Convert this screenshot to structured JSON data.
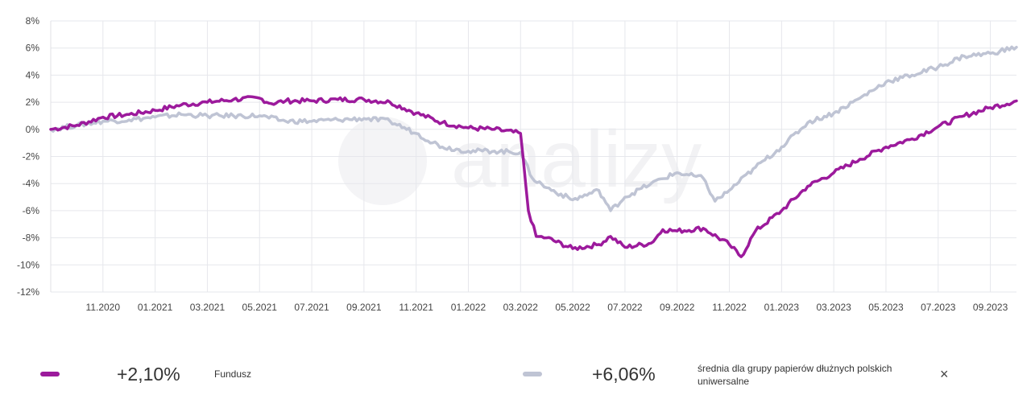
{
  "chart_data": {
    "type": "line",
    "ylim": [
      -12,
      8
    ],
    "y_ticks": [
      8,
      6,
      4,
      2,
      0,
      -2,
      -4,
      -6,
      -8,
      -10,
      -12
    ],
    "y_tick_labels": [
      "8%",
      "6%",
      "4%",
      "2%",
      "0%",
      "-2%",
      "-4%",
      "-6%",
      "-8%",
      "-10%",
      "-12%"
    ],
    "x_ticks": [
      "11.2020",
      "01.2021",
      "03.2021",
      "05.2021",
      "07.2021",
      "09.2021",
      "11.2021",
      "01.2022",
      "03.2022",
      "05.2022",
      "07.2022",
      "09.2022",
      "11.2022",
      "01.2023",
      "03.2023",
      "05.2023",
      "07.2023",
      "09.2023"
    ],
    "x_range": [
      "09.2020",
      "10.2023"
    ],
    "grid": true,
    "watermark": "analizy",
    "series": [
      {
        "name": "Fundusz",
        "color": "#9c1a9c",
        "points": [
          [
            "09.2020",
            0.0
          ],
          [
            "10.2020",
            0.3
          ],
          [
            "11.2020",
            0.9
          ],
          [
            "12.2020",
            1.1
          ],
          [
            "01.2021",
            1.4
          ],
          [
            "02.2021",
            1.8
          ],
          [
            "03.2021",
            2.0
          ],
          [
            "04.2021",
            2.2
          ],
          [
            "05.2021",
            2.3
          ],
          [
            "05.2021",
            1.9
          ],
          [
            "06.2021",
            2.1
          ],
          [
            "07.2021",
            2.1
          ],
          [
            "08.2021",
            2.2
          ],
          [
            "09.2021",
            2.2
          ],
          [
            "10.2021",
            2.0
          ],
          [
            "11.2021",
            1.2
          ],
          [
            "12.2021",
            0.5
          ],
          [
            "01.2022",
            0.1
          ],
          [
            "02.2022",
            0.0
          ],
          [
            "03.2022",
            -0.3
          ],
          [
            "03.2022",
            -6.0
          ],
          [
            "03.2022",
            -7.9
          ],
          [
            "04.2022",
            -8.0
          ],
          [
            "05.2022",
            -8.8
          ],
          [
            "06.2022",
            -8.5
          ],
          [
            "06.2022",
            -7.9
          ],
          [
            "07.2022",
            -8.7
          ],
          [
            "08.2022",
            -8.4
          ],
          [
            "08.2022",
            -7.4
          ],
          [
            "09.2022",
            -7.5
          ],
          [
            "10.2022",
            -7.3
          ],
          [
            "11.2022",
            -8.5
          ],
          [
            "11.2022",
            -9.4
          ],
          [
            "12.2022",
            -7.5
          ],
          [
            "01.2023",
            -6.0
          ],
          [
            "02.2023",
            -4.2
          ],
          [
            "03.2023",
            -3.2
          ],
          [
            "04.2023",
            -2.2
          ],
          [
            "05.2023",
            -1.3
          ],
          [
            "06.2023",
            -0.7
          ],
          [
            "07.2023",
            0.2
          ],
          [
            "08.2023",
            1.0
          ],
          [
            "09.2023",
            1.6
          ],
          [
            "10.2023",
            2.1
          ]
        ]
      },
      {
        "name": "średnia dla grupy papierów dłużnych polskich uniwersalne",
        "color": "#bfc4d4",
        "points": [
          [
            "09.2020",
            0.0
          ],
          [
            "10.2020",
            0.3
          ],
          [
            "11.2020",
            0.6
          ],
          [
            "12.2020",
            0.7
          ],
          [
            "01.2021",
            0.9
          ],
          [
            "02.2021",
            1.1
          ],
          [
            "03.2021",
            1.0
          ],
          [
            "04.2021",
            1.0
          ],
          [
            "05.2021",
            1.0
          ],
          [
            "06.2021",
            0.6
          ],
          [
            "07.2021",
            0.6
          ],
          [
            "08.2021",
            0.7
          ],
          [
            "09.2021",
            0.8
          ],
          [
            "10.2021",
            0.6
          ],
          [
            "11.2021",
            -0.3
          ],
          [
            "12.2021",
            -1.3
          ],
          [
            "01.2022",
            -1.6
          ],
          [
            "02.2022",
            -1.6
          ],
          [
            "03.2022",
            -1.7
          ],
          [
            "03.2022",
            -3.6
          ],
          [
            "04.2022",
            -4.3
          ],
          [
            "05.2022",
            -5.2
          ],
          [
            "06.2022",
            -4.5
          ],
          [
            "06.2022",
            -6.0
          ],
          [
            "07.2022",
            -5.0
          ],
          [
            "08.2022",
            -4.0
          ],
          [
            "09.2022",
            -3.2
          ],
          [
            "10.2022",
            -3.6
          ],
          [
            "10.2022",
            -5.3
          ],
          [
            "11.2022",
            -4.5
          ],
          [
            "12.2022",
            -2.8
          ],
          [
            "01.2023",
            -1.3
          ],
          [
            "02.2023",
            0.5
          ],
          [
            "03.2023",
            1.2
          ],
          [
            "04.2023",
            2.3
          ],
          [
            "05.2023",
            3.5
          ],
          [
            "06.2023",
            4.0
          ],
          [
            "07.2023",
            4.6
          ],
          [
            "08.2023",
            5.4
          ],
          [
            "09.2023",
            5.6
          ],
          [
            "10.2023",
            6.06
          ]
        ]
      }
    ]
  },
  "legend": {
    "fund": {
      "value": "+2,10%",
      "label": "Fundusz",
      "color": "#9c1a9c"
    },
    "group": {
      "value": "+6,06%",
      "label": "średnia dla grupy papierów dłużnych polskich uniwersalne",
      "color": "#bfc4d4"
    },
    "close_label": "×"
  }
}
